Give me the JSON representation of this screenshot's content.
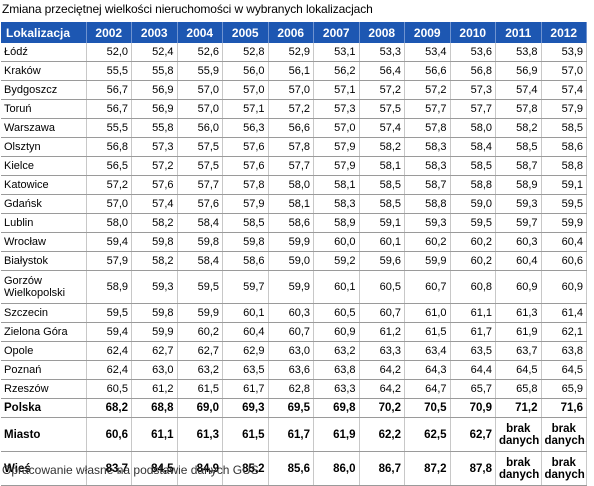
{
  "title": "Zmiana przeciętnej wielkości nieruchomości w wybranych lokalizacjach",
  "footer": "Opracowanie własne na podstawie danych GUS",
  "headers": [
    "Lokalizacja",
    "2002",
    "2003",
    "2004",
    "2005",
    "2006",
    "2007",
    "2008",
    "2009",
    "2010",
    "2011",
    "2012"
  ],
  "rows": [
    {
      "name": "Łódź",
      "values": [
        "52,0",
        "52,4",
        "52,6",
        "52,8",
        "52,9",
        "53,1",
        "53,3",
        "53,4",
        "53,6",
        "53,8",
        "53,9"
      ]
    },
    {
      "name": "Kraków",
      "values": [
        "55,5",
        "55,8",
        "55,9",
        "56,0",
        "56,1",
        "56,2",
        "56,4",
        "56,6",
        "56,8",
        "56,9",
        "57,0"
      ]
    },
    {
      "name": "Bydgoszcz",
      "values": [
        "56,7",
        "56,9",
        "57,0",
        "57,0",
        "57,0",
        "57,1",
        "57,2",
        "57,2",
        "57,3",
        "57,4",
        "57,4"
      ]
    },
    {
      "name": "Toruń",
      "values": [
        "56,7",
        "56,9",
        "57,0",
        "57,1",
        "57,2",
        "57,3",
        "57,5",
        "57,7",
        "57,7",
        "57,8",
        "57,9"
      ]
    },
    {
      "name": "Warszawa",
      "values": [
        "55,5",
        "55,8",
        "56,0",
        "56,3",
        "56,6",
        "57,0",
        "57,4",
        "57,8",
        "58,0",
        "58,2",
        "58,5"
      ]
    },
    {
      "name": "Olsztyn",
      "values": [
        "56,8",
        "57,3",
        "57,5",
        "57,6",
        "57,8",
        "57,9",
        "58,2",
        "58,3",
        "58,4",
        "58,5",
        "58,6"
      ]
    },
    {
      "name": "Kielce",
      "values": [
        "56,5",
        "57,2",
        "57,5",
        "57,6",
        "57,7",
        "57,9",
        "58,1",
        "58,3",
        "58,5",
        "58,7",
        "58,8"
      ]
    },
    {
      "name": "Katowice",
      "values": [
        "57,2",
        "57,6",
        "57,7",
        "57,8",
        "58,0",
        "58,1",
        "58,5",
        "58,7",
        "58,8",
        "58,9",
        "59,1"
      ]
    },
    {
      "name": "Gdańsk",
      "values": [
        "57,0",
        "57,4",
        "57,6",
        "57,9",
        "58,1",
        "58,3",
        "58,5",
        "58,8",
        "59,0",
        "59,3",
        "59,5"
      ]
    },
    {
      "name": "Lublin",
      "values": [
        "58,0",
        "58,2",
        "58,4",
        "58,5",
        "58,6",
        "58,9",
        "59,1",
        "59,3",
        "59,5",
        "59,7",
        "59,9"
      ]
    },
    {
      "name": "Wrocław",
      "values": [
        "59,4",
        "59,8",
        "59,8",
        "59,8",
        "59,9",
        "60,0",
        "60,1",
        "60,2",
        "60,2",
        "60,3",
        "60,4"
      ]
    },
    {
      "name": "Białystok",
      "values": [
        "57,9",
        "58,2",
        "58,4",
        "58,6",
        "59,0",
        "59,2",
        "59,6",
        "59,9",
        "60,2",
        "60,4",
        "60,6"
      ]
    },
    {
      "name": "Gorzów Wielkopolski",
      "tall": true,
      "values": [
        "58,9",
        "59,3",
        "59,5",
        "59,7",
        "59,9",
        "60,1",
        "60,5",
        "60,7",
        "60,8",
        "60,9",
        "60,9"
      ]
    },
    {
      "name": "Szczecin",
      "values": [
        "59,5",
        "59,8",
        "59,9",
        "60,1",
        "60,3",
        "60,5",
        "60,7",
        "61,0",
        "61,1",
        "61,3",
        "61,4"
      ]
    },
    {
      "name": "Zielona Góra",
      "values": [
        "59,4",
        "59,9",
        "60,2",
        "60,4",
        "60,7",
        "60,9",
        "61,2",
        "61,5",
        "61,7",
        "61,9",
        "62,1"
      ]
    },
    {
      "name": "Opole",
      "values": [
        "62,4",
        "62,7",
        "62,7",
        "62,9",
        "63,0",
        "63,2",
        "63,3",
        "63,4",
        "63,5",
        "63,7",
        "63,8"
      ]
    },
    {
      "name": "Poznań",
      "values": [
        "62,4",
        "63,0",
        "63,2",
        "63,5",
        "63,6",
        "63,8",
        "64,2",
        "64,3",
        "64,4",
        "64,5",
        "64,5"
      ]
    },
    {
      "name": "Rzeszów",
      "values": [
        "60,5",
        "61,2",
        "61,5",
        "61,7",
        "62,8",
        "63,3",
        "64,2",
        "64,7",
        "65,7",
        "65,8",
        "65,9"
      ]
    },
    {
      "name": "Polska",
      "bold": true,
      "values": [
        "68,2",
        "68,8",
        "69,0",
        "69,3",
        "69,5",
        "69,8",
        "70,2",
        "70,5",
        "70,9",
        "71,2",
        "71,6"
      ]
    },
    {
      "name": "Miasto",
      "bold": true,
      "big": true,
      "values": [
        "60,6",
        "61,1",
        "61,3",
        "61,5",
        "61,7",
        "61,9",
        "62,2",
        "62,5",
        "62,7",
        "brak danych",
        "brak danych"
      ]
    },
    {
      "name": "Wieś",
      "bold": true,
      "big": true,
      "values": [
        "83,7",
        "84,5",
        "84,9",
        "85,2",
        "85,6",
        "86,0",
        "86,7",
        "87,2",
        "87,8",
        "brak danych",
        "brak danych"
      ]
    }
  ]
}
